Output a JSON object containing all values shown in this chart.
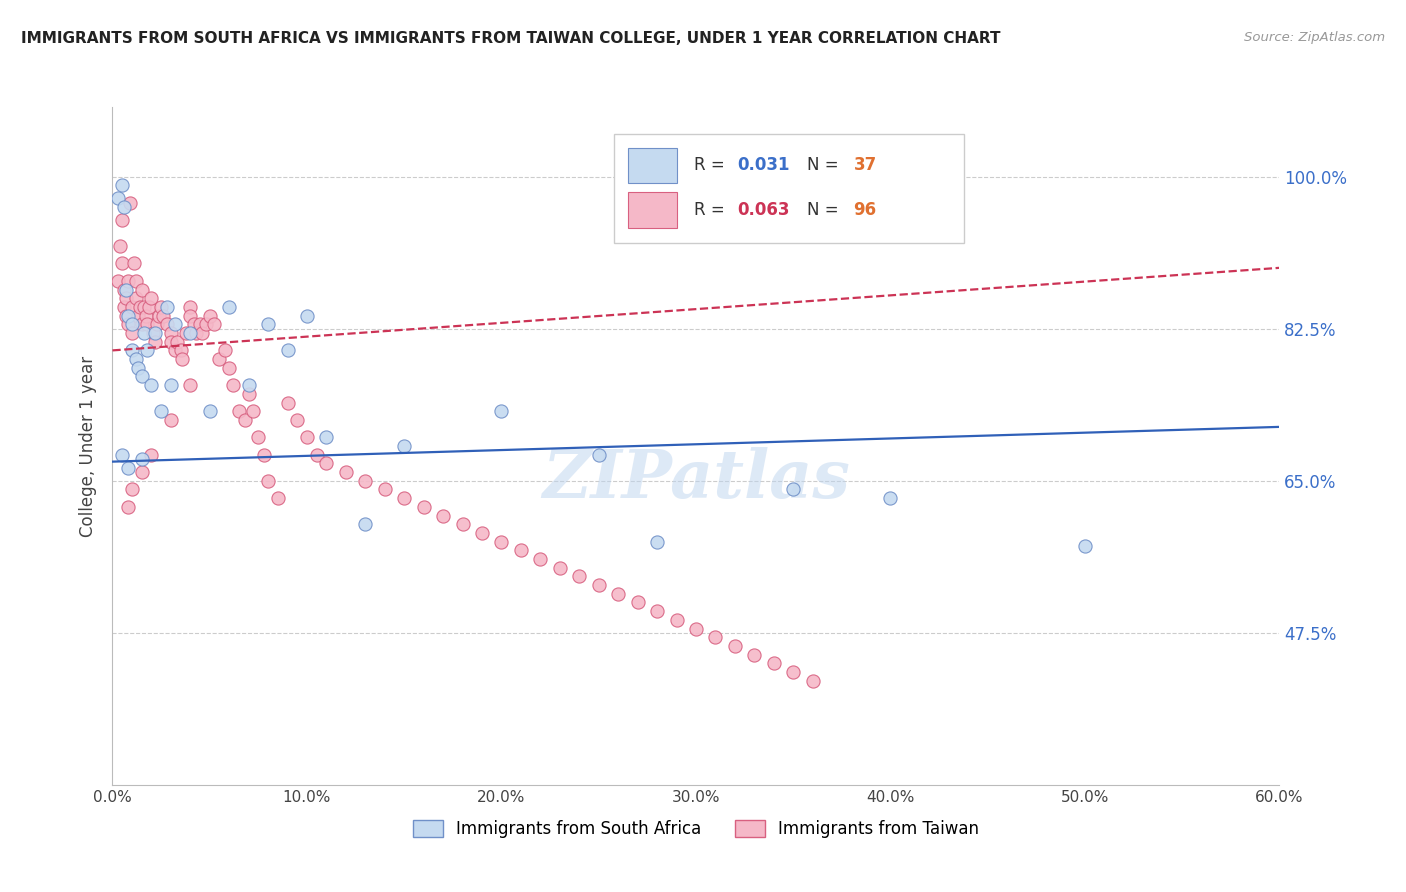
{
  "title": "IMMIGRANTS FROM SOUTH AFRICA VS IMMIGRANTS FROM TAIWAN COLLEGE, UNDER 1 YEAR CORRELATION CHART",
  "source": "Source: ZipAtlas.com",
  "ylabel": "College, Under 1 year",
  "y_ticks": [
    0.475,
    0.65,
    0.825,
    1.0
  ],
  "y_tick_labels": [
    "47.5%",
    "65.0%",
    "82.5%",
    "100.0%"
  ],
  "x_ticks": [
    0.0,
    0.1,
    0.2,
    0.3,
    0.4,
    0.5,
    0.6
  ],
  "x_tick_labels": [
    "0.0%",
    "10.0%",
    "20.0%",
    "30.0%",
    "40.0%",
    "50.0%",
    "60.0%"
  ],
  "x_min": 0.0,
  "x_max": 0.6,
  "y_min": 0.3,
  "y_max": 1.08,
  "legend_R_blue": "0.031",
  "legend_N_blue": "37",
  "legend_R_pink": "0.063",
  "legend_N_pink": "96",
  "blue_fill": "#c5daf0",
  "pink_fill": "#f5b8c8",
  "blue_edge": "#7090c8",
  "pink_edge": "#d86080",
  "blue_line_color": "#3060b8",
  "pink_line_color": "#cc3355",
  "watermark": "ZIPatlas",
  "sa_x": [
    0.003,
    0.005,
    0.006,
    0.007,
    0.008,
    0.01,
    0.01,
    0.012,
    0.013,
    0.015,
    0.016,
    0.018,
    0.02,
    0.022,
    0.025,
    0.028,
    0.03,
    0.032,
    0.04,
    0.05,
    0.06,
    0.07,
    0.08,
    0.09,
    0.1,
    0.11,
    0.13,
    0.15,
    0.2,
    0.25,
    0.28,
    0.35,
    0.4,
    0.5,
    0.005,
    0.008,
    0.015
  ],
  "sa_y": [
    0.975,
    0.99,
    0.965,
    0.87,
    0.84,
    0.83,
    0.8,
    0.79,
    0.78,
    0.77,
    0.82,
    0.8,
    0.76,
    0.82,
    0.73,
    0.85,
    0.76,
    0.83,
    0.82,
    0.73,
    0.85,
    0.76,
    0.83,
    0.8,
    0.84,
    0.7,
    0.6,
    0.69,
    0.73,
    0.68,
    0.58,
    0.64,
    0.63,
    0.575,
    0.68,
    0.665,
    0.675
  ],
  "tw_x": [
    0.003,
    0.004,
    0.005,
    0.005,
    0.006,
    0.006,
    0.007,
    0.007,
    0.008,
    0.008,
    0.009,
    0.01,
    0.01,
    0.011,
    0.012,
    0.012,
    0.013,
    0.014,
    0.015,
    0.015,
    0.016,
    0.017,
    0.018,
    0.019,
    0.02,
    0.021,
    0.022,
    0.023,
    0.024,
    0.025,
    0.026,
    0.028,
    0.03,
    0.03,
    0.032,
    0.033,
    0.035,
    0.036,
    0.038,
    0.04,
    0.04,
    0.042,
    0.043,
    0.045,
    0.046,
    0.048,
    0.05,
    0.052,
    0.055,
    0.058,
    0.06,
    0.062,
    0.065,
    0.068,
    0.07,
    0.072,
    0.075,
    0.078,
    0.08,
    0.085,
    0.09,
    0.095,
    0.1,
    0.105,
    0.11,
    0.12,
    0.13,
    0.14,
    0.15,
    0.16,
    0.17,
    0.18,
    0.19,
    0.2,
    0.21,
    0.22,
    0.23,
    0.24,
    0.25,
    0.26,
    0.27,
    0.28,
    0.29,
    0.3,
    0.31,
    0.32,
    0.33,
    0.34,
    0.35,
    0.36,
    0.04,
    0.03,
    0.02,
    0.015,
    0.01,
    0.008
  ],
  "tw_y": [
    0.88,
    0.92,
    0.95,
    0.9,
    0.87,
    0.85,
    0.84,
    0.86,
    0.88,
    0.83,
    0.97,
    0.82,
    0.85,
    0.9,
    0.88,
    0.86,
    0.84,
    0.85,
    0.87,
    0.83,
    0.85,
    0.84,
    0.83,
    0.85,
    0.86,
    0.82,
    0.81,
    0.83,
    0.84,
    0.85,
    0.84,
    0.83,
    0.82,
    0.81,
    0.8,
    0.81,
    0.8,
    0.79,
    0.82,
    0.85,
    0.84,
    0.83,
    0.82,
    0.83,
    0.82,
    0.83,
    0.84,
    0.83,
    0.79,
    0.8,
    0.78,
    0.76,
    0.73,
    0.72,
    0.75,
    0.73,
    0.7,
    0.68,
    0.65,
    0.63,
    0.74,
    0.72,
    0.7,
    0.68,
    0.67,
    0.66,
    0.65,
    0.64,
    0.63,
    0.62,
    0.61,
    0.6,
    0.59,
    0.58,
    0.57,
    0.56,
    0.55,
    0.54,
    0.53,
    0.52,
    0.51,
    0.5,
    0.49,
    0.48,
    0.47,
    0.46,
    0.45,
    0.44,
    0.43,
    0.42,
    0.76,
    0.72,
    0.68,
    0.66,
    0.64,
    0.62
  ]
}
